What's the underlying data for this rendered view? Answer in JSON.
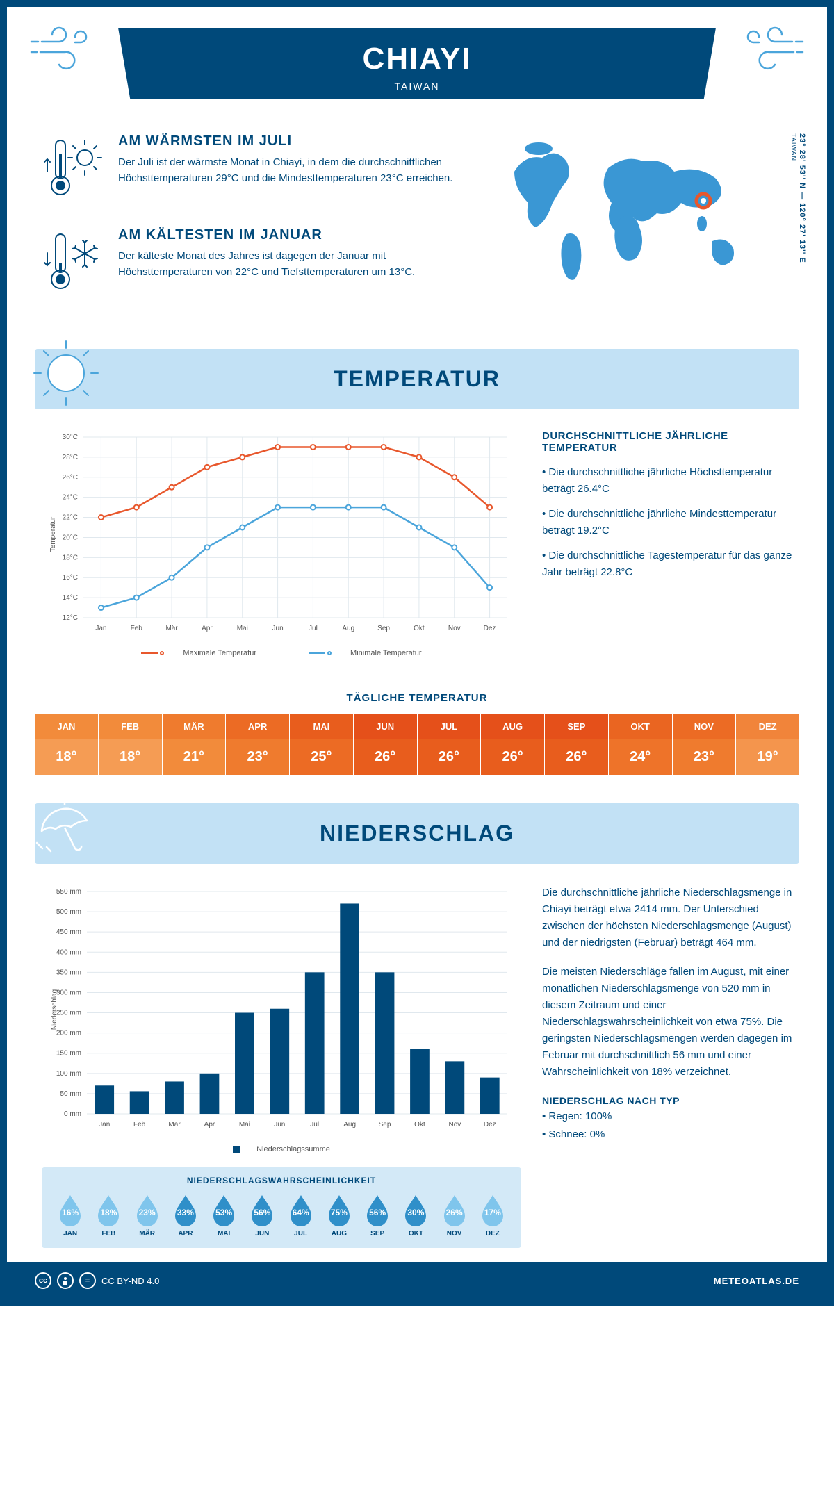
{
  "header": {
    "city": "CHIAYI",
    "country": "TAIWAN",
    "coordinates": "23° 28' 53'' N — 120° 27' 13'' E",
    "coord_label": "TAIWAN"
  },
  "colors": {
    "primary": "#00497a",
    "light_blue": "#4ba5db",
    "pale_blue": "#c2e1f5",
    "max_line": "#e8572c",
    "min_line": "#4ba5db",
    "grid": "#e0e8ee"
  },
  "facts": {
    "warmest": {
      "title": "AM WÄRMSTEN IM JULI",
      "body": "Der Juli ist der wärmste Monat in Chiayi, in dem die durchschnittlichen Höchsttemperaturen 29°C und die Mindesttemperaturen 23°C erreichen."
    },
    "coldest": {
      "title": "AM KÄLTESTEN IM JANUAR",
      "body": "Der kälteste Monat des Jahres ist dagegen der Januar mit Höchsttemperaturen von 22°C und Tiefsttemperaturen um 13°C."
    }
  },
  "sections": {
    "temperature": "TEMPERATUR",
    "precipitation": "NIEDERSCHLAG"
  },
  "months": [
    "Jan",
    "Feb",
    "Mär",
    "Apr",
    "Mai",
    "Jun",
    "Jul",
    "Aug",
    "Sep",
    "Okt",
    "Nov",
    "Dez"
  ],
  "months_upper": [
    "JAN",
    "FEB",
    "MÄR",
    "APR",
    "MAI",
    "JUN",
    "JUL",
    "AUG",
    "SEP",
    "OKT",
    "NOV",
    "DEZ"
  ],
  "temp_chart": {
    "ylabel": "Temperatur",
    "ymin": 12,
    "ymax": 30,
    "ytick_step": 2,
    "max_series": [
      22,
      23,
      25,
      27,
      28,
      29,
      29,
      29,
      29,
      28,
      26,
      23
    ],
    "min_series": [
      13,
      14,
      16,
      19,
      21,
      23,
      23,
      23,
      23,
      21,
      19,
      15
    ],
    "legend_max": "Maximale Temperatur",
    "legend_min": "Minimale Temperatur"
  },
  "temp_text": {
    "title": "DURCHSCHNITTLICHE JÄHRLICHE TEMPERATUR",
    "p1": "• Die durchschnittliche jährliche Höchsttemperatur beträgt 26.4°C",
    "p2": "• Die durchschnittliche jährliche Mindesttemperatur beträgt 19.2°C",
    "p3": "• Die durchschnittliche Tagestemperatur für das ganze Jahr beträgt 22.8°C"
  },
  "daily": {
    "title": "TÄGLICHE TEMPERATUR",
    "values": [
      "18°",
      "18°",
      "21°",
      "23°",
      "25°",
      "26°",
      "26°",
      "26°",
      "26°",
      "24°",
      "23°",
      "19°"
    ],
    "head_colors": [
      "#f28b3b",
      "#f28b3b",
      "#ef7b2e",
      "#ec6b24",
      "#e85d1d",
      "#e5501a",
      "#e5501a",
      "#e5501a",
      "#e5501a",
      "#ea6521",
      "#ec6b24",
      "#f1843a"
    ],
    "val_colors": [
      "#f59c54",
      "#f59c54",
      "#f28b3b",
      "#ef7b2e",
      "#ec6b24",
      "#e85d1d",
      "#e85d1d",
      "#e85d1d",
      "#e85d1d",
      "#ee7329",
      "#ef7b2e",
      "#f4954d"
    ]
  },
  "precip_chart": {
    "ylabel": "Niederschlag",
    "ymin": 0,
    "ymax": 550,
    "ytick_step": 50,
    "values": [
      70,
      56,
      80,
      100,
      250,
      260,
      350,
      520,
      350,
      160,
      130,
      90
    ],
    "legend": "Niederschlagssumme",
    "bar_color": "#00497a"
  },
  "precip_text": {
    "p1": "Die durchschnittliche jährliche Niederschlagsmenge in Chiayi beträgt etwa 2414 mm. Der Unterschied zwischen der höchsten Niederschlagsmenge (August) und der niedrigsten (Februar) beträgt 464 mm.",
    "p2": "Die meisten Niederschläge fallen im August, mit einer monatlichen Niederschlagsmenge von 520 mm in diesem Zeitraum und einer Niederschlagswahrscheinlichkeit von etwa 75%. Die geringsten Niederschlagsmengen werden dagegen im Februar mit durchschnittlich 56 mm und einer Wahrscheinlichkeit von 18% verzeichnet.",
    "type_title": "NIEDERSCHLAG NACH TYP",
    "rain": "• Regen: 100%",
    "snow": "• Schnee: 0%"
  },
  "probability": {
    "title": "NIEDERSCHLAGSWAHRSCHEINLICHKEIT",
    "values": [
      16,
      18,
      23,
      33,
      53,
      56,
      64,
      75,
      56,
      30,
      26,
      17
    ],
    "light_color": "#7fc5ec",
    "dark_color": "#2f8fc9",
    "threshold": 30
  },
  "footer": {
    "license": "CC BY-ND 4.0",
    "site": "METEOATLAS.DE"
  }
}
